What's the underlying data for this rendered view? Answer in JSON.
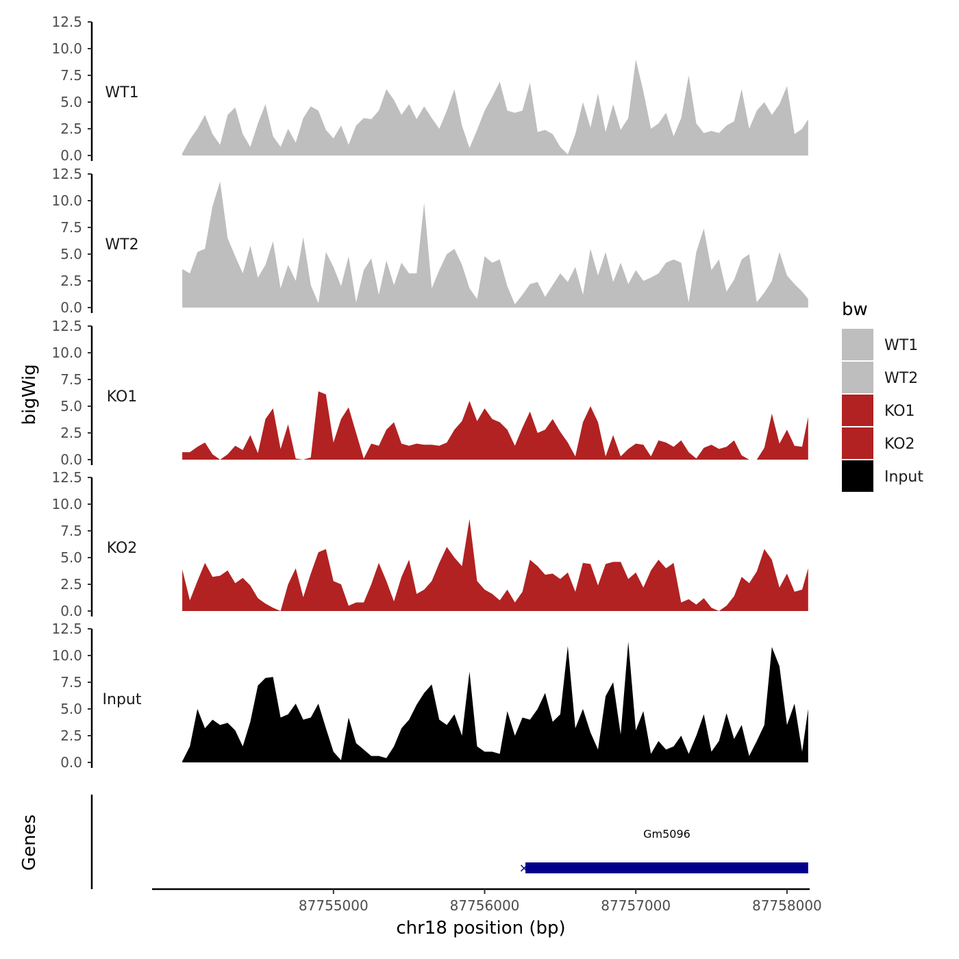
{
  "chart_data": {
    "type": "area",
    "xlabel": "chr18 position (bp)",
    "ylabel": "bigWig",
    "genes_label": "Genes",
    "xlim": [
      87753800,
      87758150
    ],
    "ylim": [
      0,
      12.5
    ],
    "y_ticks": [
      "0.0",
      "2.5",
      "5.0",
      "7.5",
      "10.0",
      "12.5"
    ],
    "x_ticks": [
      {
        "value": 87755000,
        "label": "87755000"
      },
      {
        "value": 87756000,
        "label": "87756000"
      },
      {
        "value": 87757000,
        "label": "87757000"
      },
      {
        "value": 87758000,
        "label": "87758000"
      }
    ],
    "legend": {
      "title": "bw",
      "entries": [
        {
          "label": "WT1",
          "color": "#bebebe"
        },
        {
          "label": "WT2",
          "color": "#bebebe"
        },
        {
          "label": "KO1",
          "color": "#b22222"
        },
        {
          "label": "KO2",
          "color": "#b22222"
        },
        {
          "label": "Input",
          "color": "#000000"
        }
      ]
    },
    "series": [
      {
        "name": "WT1",
        "color": "#bebebe",
        "x": [
          87754000,
          87754050,
          87754100,
          87754150,
          87754200,
          87754250,
          87754300,
          87754350,
          87754400,
          87754450,
          87754500,
          87754550,
          87754600,
          87754650,
          87754700,
          87754750,
          87754800,
          87754850,
          87754900,
          87754950,
          87755000,
          87755050,
          87755100,
          87755150,
          87755200,
          87755250,
          87755300,
          87755350,
          87755400,
          87755450,
          87755500,
          87755550,
          87755600,
          87755650,
          87755700,
          87755750,
          87755800,
          87755850,
          87755900,
          87755950,
          87756000,
          87756050,
          87756100,
          87756150,
          87756200,
          87756250,
          87756300,
          87756350,
          87756400,
          87756450,
          87756500,
          87756550,
          87756600,
          87756650,
          87756700,
          87756750,
          87756800,
          87756850,
          87756900,
          87756950,
          87757000,
          87757050,
          87757100,
          87757150,
          87757200,
          87757250,
          87757300,
          87757350,
          87757400,
          87757450,
          87757500,
          87757550,
          87757600,
          87757650,
          87757700,
          87757750,
          87757800,
          87757850,
          87757900,
          87757950,
          87758000,
          87758050,
          87758100,
          87758140
        ],
        "values": [
          0.2,
          1.5,
          2.5,
          3.8,
          2.0,
          1.0,
          3.8,
          4.5,
          2.0,
          0.8,
          3.0,
          4.8,
          1.8,
          0.8,
          2.5,
          1.2,
          3.5,
          4.6,
          4.2,
          2.4,
          1.6,
          2.8,
          1.0,
          2.8,
          3.5,
          3.4,
          4.2,
          6.2,
          5.2,
          3.8,
          4.8,
          3.4,
          4.6,
          3.5,
          2.5,
          4.2,
          6.2,
          2.8,
          0.7,
          2.4,
          4.2,
          5.5,
          6.9,
          4.2,
          4.0,
          4.2,
          6.8,
          2.2,
          2.4,
          2.0,
          0.8,
          0.1,
          2.0,
          5.0,
          2.6,
          5.8,
          2.2,
          4.8,
          2.4,
          3.5,
          9.0,
          6.0,
          2.5,
          3.0,
          4.0,
          1.8,
          3.5,
          7.5,
          3.0,
          2.1,
          2.3,
          2.1,
          2.8,
          3.2,
          6.2,
          2.5,
          4.2,
          5.0,
          3.8,
          4.8,
          6.5,
          2.0,
          2.5,
          3.4
        ]
      },
      {
        "name": "WT2",
        "color": "#bebebe",
        "x": [
          87754000,
          87754050,
          87754100,
          87754150,
          87754200,
          87754250,
          87754300,
          87754350,
          87754400,
          87754450,
          87754500,
          87754550,
          87754600,
          87754650,
          87754700,
          87754750,
          87754800,
          87754850,
          87754900,
          87754950,
          87755000,
          87755050,
          87755100,
          87755150,
          87755200,
          87755250,
          87755300,
          87755350,
          87755400,
          87755450,
          87755500,
          87755550,
          87755600,
          87755650,
          87755700,
          87755750,
          87755800,
          87755850,
          87755900,
          87755950,
          87756000,
          87756050,
          87756100,
          87756150,
          87756200,
          87756250,
          87756300,
          87756350,
          87756400,
          87756450,
          87756500,
          87756550,
          87756600,
          87756650,
          87756700,
          87756750,
          87756800,
          87756850,
          87756900,
          87756950,
          87757000,
          87757050,
          87757100,
          87757150,
          87757200,
          87757250,
          87757300,
          87757350,
          87757400,
          87757450,
          87757500,
          87757550,
          87757600,
          87757650,
          87757700,
          87757750,
          87757800,
          87757850,
          87757900,
          87757950,
          87758000,
          87758050,
          87758100,
          87758140
        ],
        "values": [
          3.6,
          3.2,
          5.2,
          5.5,
          9.5,
          11.8,
          6.5,
          4.8,
          3.2,
          5.8,
          2.8,
          4.0,
          6.2,
          1.8,
          4.0,
          2.5,
          6.6,
          2.1,
          0.4,
          5.2,
          3.8,
          2.0,
          4.8,
          0.5,
          3.5,
          4.6,
          1.2,
          4.4,
          2.1,
          4.2,
          3.2,
          3.2,
          9.8,
          1.8,
          3.5,
          5.0,
          5.5,
          4.0,
          1.8,
          0.8,
          4.8,
          4.2,
          4.5,
          2.0,
          0.3,
          1.2,
          2.2,
          2.4,
          1.0,
          2.1,
          3.2,
          2.4,
          3.8,
          1.2,
          5.5,
          3.0,
          5.2,
          2.4,
          4.2,
          2.2,
          3.5,
          2.5,
          2.8,
          3.2,
          4.2,
          4.5,
          4.2,
          0.5,
          5.2,
          7.4,
          3.5,
          4.5,
          1.5,
          2.6,
          4.5,
          5.0,
          0.5,
          1.4,
          2.5,
          5.2,
          3.0,
          2.2,
          1.5,
          0.8
        ]
      },
      {
        "name": "KO1",
        "color": "#b22222",
        "x": [
          87754000,
          87754050,
          87754100,
          87754150,
          87754200,
          87754250,
          87754300,
          87754350,
          87754400,
          87754450,
          87754500,
          87754550,
          87754600,
          87754650,
          87754700,
          87754750,
          87754800,
          87754850,
          87754900,
          87754950,
          87755000,
          87755050,
          87755100,
          87755150,
          87755200,
          87755250,
          87755300,
          87755350,
          87755400,
          87755450,
          87755500,
          87755550,
          87755600,
          87755650,
          87755700,
          87755750,
          87755800,
          87755850,
          87755900,
          87755950,
          87756000,
          87756050,
          87756100,
          87756150,
          87756200,
          87756250,
          87756300,
          87756350,
          87756400,
          87756450,
          87756500,
          87756550,
          87756600,
          87756650,
          87756700,
          87756750,
          87756800,
          87756850,
          87756900,
          87756950,
          87757000,
          87757050,
          87757100,
          87757150,
          87757200,
          87757250,
          87757300,
          87757350,
          87757400,
          87757450,
          87757500,
          87757550,
          87757600,
          87757650,
          87757700,
          87757750,
          87757800,
          87757850,
          87757900,
          87757950,
          87758000,
          87758050,
          87758100,
          87758140
        ],
        "values": [
          0.7,
          0.7,
          1.2,
          1.6,
          0.5,
          0.0,
          0.5,
          1.3,
          0.9,
          2.3,
          0.6,
          3.8,
          4.8,
          1.0,
          3.3,
          0.1,
          0.0,
          0.2,
          6.4,
          6.1,
          1.6,
          3.8,
          4.9,
          2.5,
          0.1,
          1.5,
          1.3,
          2.8,
          3.5,
          1.5,
          1.3,
          1.5,
          1.4,
          1.4,
          1.3,
          1.6,
          2.8,
          3.6,
          5.5,
          3.6,
          4.8,
          3.8,
          3.5,
          2.8,
          1.3,
          3.0,
          4.5,
          2.5,
          2.8,
          3.8,
          2.6,
          1.6,
          0.3,
          3.5,
          5.0,
          3.5,
          0.3,
          2.3,
          0.3,
          1.0,
          1.5,
          1.4,
          0.3,
          1.8,
          1.6,
          1.2,
          1.8,
          0.7,
          0.1,
          1.1,
          1.4,
          1.0,
          1.2,
          1.8,
          0.4,
          0.0,
          0.0,
          1.1,
          4.3,
          1.5,
          2.8,
          1.3,
          1.2,
          4.0
        ]
      },
      {
        "name": "KO2",
        "color": "#b22222",
        "x": [
          87754000,
          87754050,
          87754100,
          87754150,
          87754200,
          87754250,
          87754300,
          87754350,
          87754400,
          87754450,
          87754500,
          87754550,
          87754600,
          87754650,
          87754700,
          87754750,
          87754800,
          87754850,
          87754900,
          87754950,
          87755000,
          87755050,
          87755100,
          87755150,
          87755200,
          87755250,
          87755300,
          87755350,
          87755400,
          87755450,
          87755500,
          87755550,
          87755600,
          87755650,
          87755700,
          87755750,
          87755800,
          87755850,
          87755900,
          87755950,
          87756000,
          87756050,
          87756100,
          87756150,
          87756200,
          87756250,
          87756300,
          87756350,
          87756400,
          87756450,
          87756500,
          87756550,
          87756600,
          87756650,
          87756700,
          87756750,
          87756800,
          87756850,
          87756900,
          87756950,
          87757000,
          87757050,
          87757100,
          87757150,
          87757200,
          87757250,
          87757300,
          87757350,
          87757400,
          87757450,
          87757500,
          87757550,
          87757600,
          87757650,
          87757700,
          87757750,
          87757800,
          87757850,
          87757900,
          87757950,
          87758000,
          87758050,
          87758100,
          87758140
        ],
        "values": [
          3.9,
          1.0,
          2.8,
          4.5,
          3.2,
          3.3,
          3.8,
          2.6,
          3.1,
          2.4,
          1.2,
          0.7,
          0.3,
          0.0,
          2.5,
          4.0,
          1.3,
          3.5,
          5.5,
          5.8,
          2.8,
          2.5,
          0.5,
          0.8,
          0.8,
          2.5,
          4.5,
          2.8,
          0.9,
          3.2,
          4.8,
          1.6,
          2.0,
          2.8,
          4.5,
          6.0,
          5.0,
          4.2,
          8.6,
          2.8,
          2.0,
          1.6,
          1.0,
          2.0,
          0.8,
          1.8,
          4.8,
          4.2,
          3.4,
          3.5,
          3.0,
          3.6,
          1.8,
          4.5,
          4.4,
          2.4,
          4.4,
          4.6,
          4.6,
          3.0,
          3.6,
          2.2,
          3.8,
          4.8,
          4.0,
          4.5,
          0.8,
          1.1,
          0.6,
          1.2,
          0.3,
          0.0,
          0.5,
          1.4,
          3.2,
          2.6,
          3.7,
          5.8,
          4.8,
          2.2,
          3.5,
          1.8,
          2.0,
          4.0
        ]
      },
      {
        "name": "Input",
        "color": "#000000",
        "x": [
          87754000,
          87754050,
          87754100,
          87754150,
          87754200,
          87754250,
          87754300,
          87754350,
          87754400,
          87754450,
          87754500,
          87754550,
          87754600,
          87754650,
          87754700,
          87754750,
          87754800,
          87754850,
          87754900,
          87754950,
          87755000,
          87755050,
          87755100,
          87755150,
          87755200,
          87755250,
          87755300,
          87755350,
          87755400,
          87755450,
          87755500,
          87755550,
          87755600,
          87755650,
          87755700,
          87755750,
          87755800,
          87755850,
          87755900,
          87755950,
          87756000,
          87756050,
          87756100,
          87756150,
          87756200,
          87756250,
          87756300,
          87756350,
          87756400,
          87756450,
          87756500,
          87756550,
          87756600,
          87756650,
          87756700,
          87756750,
          87756800,
          87756850,
          87756900,
          87756950,
          87757000,
          87757050,
          87757100,
          87757150,
          87757200,
          87757250,
          87757300,
          87757350,
          87757400,
          87757450,
          87757500,
          87757550,
          87757600,
          87757650,
          87757700,
          87757750,
          87757800,
          87757850,
          87757900,
          87757950,
          87758000,
          87758050,
          87758100,
          87758140
        ],
        "values": [
          0.1,
          1.5,
          5.0,
          3.2,
          4.0,
          3.5,
          3.7,
          3.0,
          1.5,
          3.8,
          7.2,
          7.9,
          8.0,
          4.2,
          4.5,
          5.5,
          4.0,
          4.2,
          5.5,
          3.2,
          1.0,
          0.2,
          4.2,
          1.8,
          1.2,
          0.6,
          0.6,
          0.4,
          1.5,
          3.2,
          4.0,
          5.4,
          6.5,
          7.3,
          4.0,
          3.5,
          4.5,
          2.5,
          8.5,
          1.5,
          1.0,
          1.0,
          0.8,
          4.8,
          2.5,
          4.2,
          4.0,
          5.0,
          6.5,
          3.8,
          4.5,
          10.9,
          3.2,
          5.0,
          2.8,
          1.2,
          6.2,
          7.5,
          2.6,
          11.3,
          3.0,
          4.8,
          0.8,
          2.0,
          1.2,
          1.5,
          2.5,
          0.8,
          2.5,
          4.5,
          1.0,
          2.0,
          4.6,
          2.2,
          3.5,
          0.6,
          2.0,
          3.5,
          10.8,
          9.0,
          3.5,
          5.5,
          1.0,
          5.0
        ]
      }
    ],
    "gene": {
      "name": "Gm5096",
      "start": 87756270,
      "end": 87758140,
      "color": "#00008b",
      "strand_marker": "×"
    }
  }
}
